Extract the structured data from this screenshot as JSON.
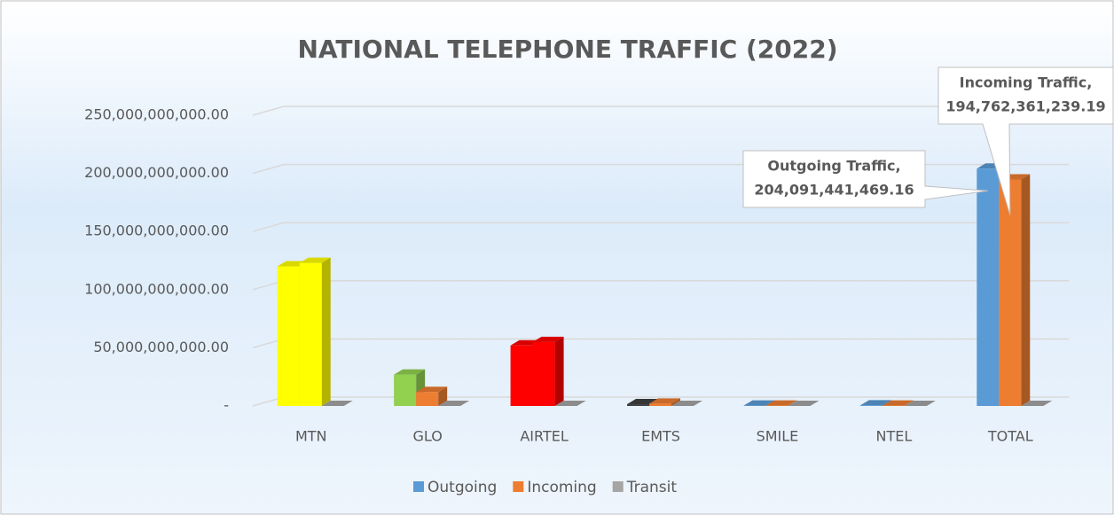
{
  "chart_data": {
    "type": "bar3d",
    "title": "NATIONAL TELEPHONE TRAFFIC (2022)",
    "categories": [
      "MTN",
      "GLO",
      "AIRTEL",
      "EMTS",
      "SMILE",
      "NTEL",
      "TOTAL"
    ],
    "series": [
      {
        "name": "Outgoing",
        "color": "#5b9bd5",
        "colors": [
          "#ffff00",
          "#92d050",
          "#ff0000",
          "#404040",
          "#5b9bd5",
          "#5b9bd5",
          "#5b9bd5"
        ],
        "values": [
          120000000000,
          27000000000,
          52000000000,
          1500000000,
          300000000,
          500000000,
          204091441469.16
        ],
        "value_labels": [
          null,
          null,
          null,
          null,
          null,
          null,
          [
            "Outgoing Traffic,",
            "204,091,441,469.16"
          ]
        ]
      },
      {
        "name": "Incoming",
        "color": "#ed7d31",
        "colors": [
          "#ffff00",
          "#ed7d31",
          "#ff0000",
          "#ed7d31",
          "#ed7d31",
          "#ed7d31",
          "#ed7d31"
        ],
        "values": [
          123000000000,
          12000000000,
          55000000000,
          2000000000,
          300000000,
          300000000,
          194762361239.19
        ],
        "value_labels": [
          null,
          null,
          null,
          null,
          null,
          null,
          [
            "Incoming Traffic,",
            "194,762,361,239.19"
          ]
        ]
      },
      {
        "name": "Transit",
        "color": "#a5a5a5",
        "colors": [
          "#a5a5a5",
          "#a5a5a5",
          "#a5a5a5",
          "#a5a5a5",
          "#a5a5a5",
          "#a5a5a5",
          "#a5a5a5"
        ],
        "values": [
          0,
          0,
          0,
          0,
          0,
          0,
          0
        ]
      }
    ],
    "ylim": [
      0,
      250000000000
    ],
    "yticks": [
      {
        "value": 0,
        "label": "-"
      },
      {
        "value": 50000000000,
        "label": "50,000,000,000.00"
      },
      {
        "value": 100000000000,
        "label": "100,000,000,000.00"
      },
      {
        "value": 150000000000,
        "label": "150,000,000,000.00"
      },
      {
        "value": 200000000000,
        "label": "200,000,000,000.00"
      },
      {
        "value": 250000000000,
        "label": "250,000,000,000.00"
      }
    ],
    "grid": true,
    "legend": "bottom"
  }
}
